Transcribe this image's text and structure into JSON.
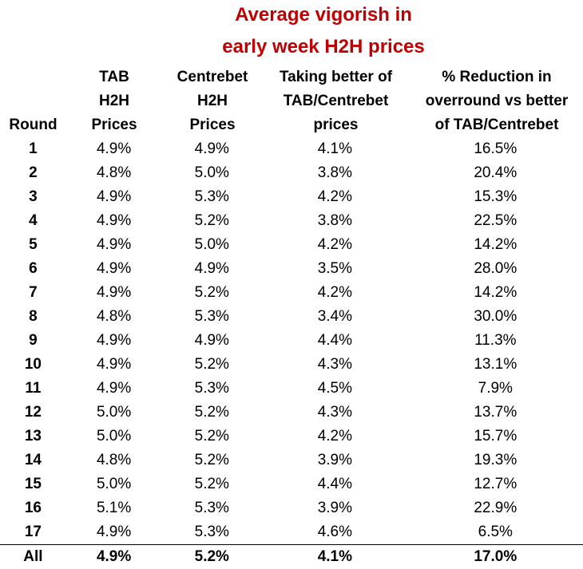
{
  "chart_data": {
    "type": "table",
    "title": [
      "Average vigorish in",
      "early week H2H prices"
    ],
    "columns": [
      [
        "Round"
      ],
      [
        "TAB",
        "H2H",
        "Prices"
      ],
      [
        "Centrebet",
        "H2H",
        "Prices"
      ],
      [
        "Taking better of",
        "TAB/Centrebet",
        "prices"
      ],
      [
        "% Reduction in",
        "overround vs better",
        "of TAB/Centrebet"
      ]
    ],
    "rows": [
      [
        "1",
        "4.9%",
        "4.9%",
        "4.1%",
        "16.5%"
      ],
      [
        "2",
        "4.8%",
        "5.0%",
        "3.8%",
        "20.4%"
      ],
      [
        "3",
        "4.9%",
        "5.3%",
        "4.2%",
        "15.3%"
      ],
      [
        "4",
        "4.9%",
        "5.2%",
        "3.8%",
        "22.5%"
      ],
      [
        "5",
        "4.9%",
        "5.0%",
        "4.2%",
        "14.2%"
      ],
      [
        "6",
        "4.9%",
        "4.9%",
        "3.5%",
        "28.0%"
      ],
      [
        "7",
        "4.9%",
        "5.2%",
        "4.2%",
        "14.2%"
      ],
      [
        "8",
        "4.8%",
        "5.3%",
        "3.4%",
        "30.0%"
      ],
      [
        "9",
        "4.9%",
        "4.9%",
        "4.4%",
        "11.3%"
      ],
      [
        "10",
        "4.9%",
        "5.2%",
        "4.3%",
        "13.1%"
      ],
      [
        "11",
        "4.9%",
        "5.3%",
        "4.5%",
        "7.9%"
      ],
      [
        "12",
        "5.0%",
        "5.2%",
        "4.3%",
        "13.7%"
      ],
      [
        "13",
        "5.0%",
        "5.2%",
        "4.2%",
        "15.7%"
      ],
      [
        "14",
        "4.8%",
        "5.2%",
        "3.9%",
        "19.3%"
      ],
      [
        "15",
        "5.0%",
        "5.2%",
        "4.4%",
        "12.7%"
      ],
      [
        "16",
        "5.1%",
        "5.3%",
        "3.9%",
        "22.9%"
      ],
      [
        "17",
        "4.9%",
        "5.3%",
        "4.6%",
        "6.5%"
      ]
    ],
    "total_row": [
      "All",
      "4.9%",
      "5.2%",
      "4.1%",
      "17.0%"
    ]
  },
  "colors": {
    "title": "#c00000",
    "text": "#000000",
    "background": "#ffffff"
  }
}
